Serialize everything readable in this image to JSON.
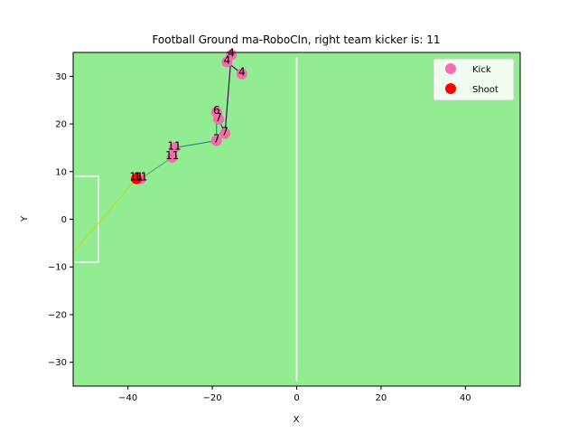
{
  "chart_data": {
    "type": "scatter",
    "title": "Football Ground ma-RoboCIn, right team kicker is: 11",
    "xlabel": "X",
    "ylabel": "Y",
    "xlim": [
      -53,
      53
    ],
    "ylim": [
      -35,
      35
    ],
    "xticks": [
      -40,
      -20,
      0,
      20,
      40
    ],
    "yticks": [
      -30,
      -20,
      -10,
      0,
      10,
      20,
      30
    ],
    "background_color": "#92ec91",
    "field_lines": [
      {
        "x": [
          0,
          0
        ],
        "y": [
          -34,
          34
        ]
      },
      {
        "x": [
          -52.5,
          -47,
          -47,
          -52.5
        ],
        "y": [
          9,
          9,
          -9,
          -9
        ]
      }
    ],
    "path_colors": [
      "#3d0e56",
      "#3a4b8b",
      "#2b8a8c",
      "#4cb576",
      "#b9de2c"
    ],
    "path": [
      {
        "x": -13,
        "y": 30.5
      },
      {
        "x": -16.5,
        "y": 33
      },
      {
        "x": -15.5,
        "y": 34.5
      },
      {
        "x": -17,
        "y": 18
      },
      {
        "x": -18.5,
        "y": 21
      },
      {
        "x": -19,
        "y": 22.5
      },
      {
        "x": -19,
        "y": 16.5
      },
      {
        "x": -29,
        "y": 15
      },
      {
        "x": -29.5,
        "y": 13
      },
      {
        "x": -37,
        "y": 8.5
      },
      {
        "x": -38,
        "y": 8.5
      },
      {
        "x": -53,
        "y": -7
      }
    ],
    "kick_points": [
      {
        "x": -13,
        "y": 30.5,
        "label": "4"
      },
      {
        "x": -16.5,
        "y": 33,
        "label": "4"
      },
      {
        "x": -15.5,
        "y": 34.5,
        "label": "4"
      },
      {
        "x": -17,
        "y": 18,
        "label": "7"
      },
      {
        "x": -18.5,
        "y": 21,
        "label": "7"
      },
      {
        "x": -19,
        "y": 22.5,
        "label": "6"
      },
      {
        "x": -19,
        "y": 16.5,
        "label": "7"
      },
      {
        "x": -29,
        "y": 15,
        "label": "11"
      },
      {
        "x": -29.5,
        "y": 13,
        "label": "11"
      },
      {
        "x": -37,
        "y": 8.5,
        "label": "11"
      }
    ],
    "shoot_points": [
      {
        "x": -38,
        "y": 8.5,
        "label": "11"
      }
    ],
    "legend": {
      "position": "top-right",
      "entries": [
        {
          "label": "Kick",
          "color": "#ff69b4"
        },
        {
          "label": "Shoot",
          "color": "#ff0000"
        }
      ]
    },
    "marker_colors": {
      "kick": "#f06eaa",
      "shoot": "#ff0000"
    }
  }
}
